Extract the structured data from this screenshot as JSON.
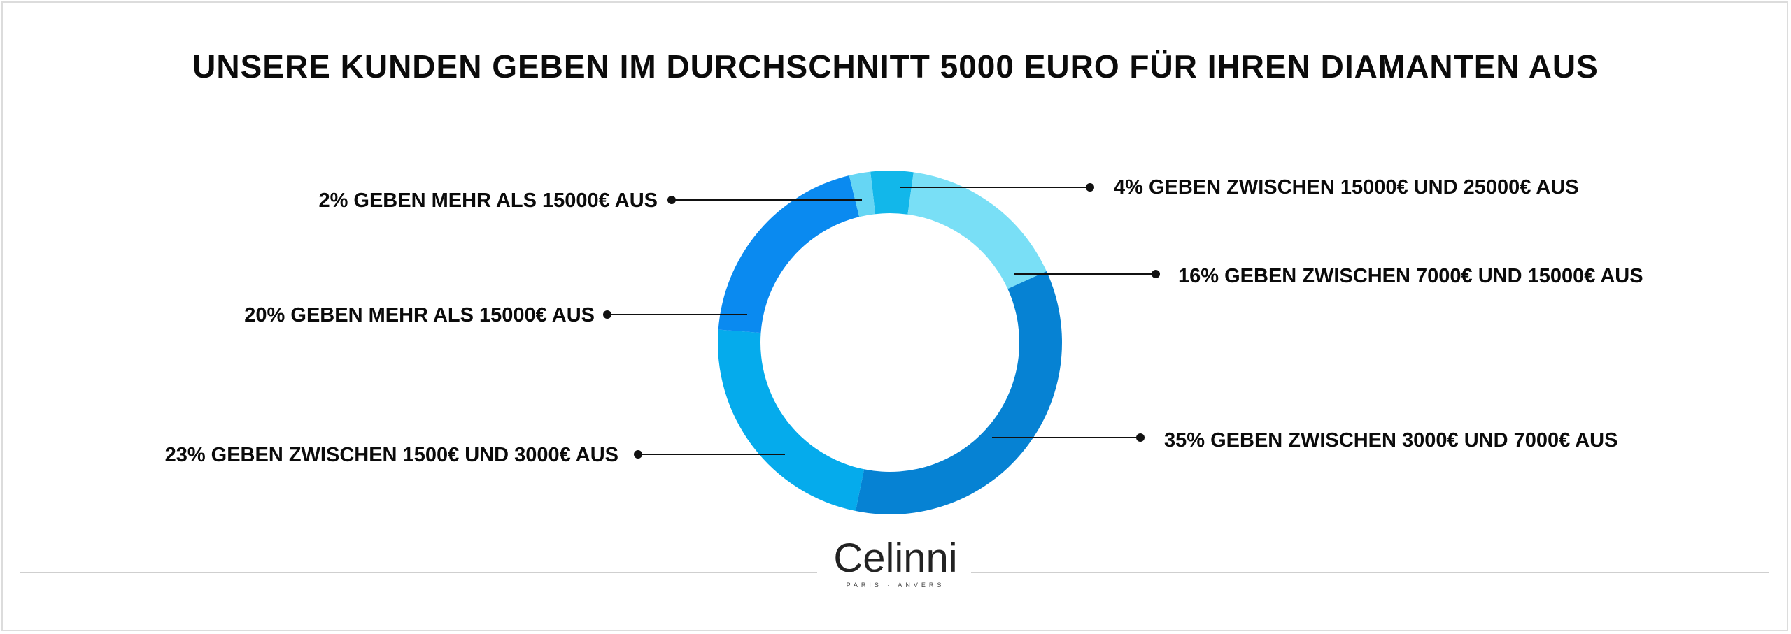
{
  "title": "UNSERE KUNDEN GEBEN IM DURCHSCHNITT 5000 EURO FÜR IHREN DIAMANTEN AUS",
  "chart_data": {
    "type": "pie",
    "donut": true,
    "title": "UNSERE KUNDEN GEBEN IM DURCHSCHNITT 5000 EURO FÜR IHREN DIAMANTEN AUS",
    "slices": [
      {
        "label": "4% GEBEN ZWISCHEN 15000€ UND 25000€ AUS",
        "value": 4,
        "color": "#12b7ea"
      },
      {
        "label": "16% GEBEN ZWISCHEN 7000€ UND 15000€ AUS",
        "value": 16,
        "color": "#79dff6"
      },
      {
        "label": "35% GEBEN ZWISCHEN 3000€ UND 7000€ AUS",
        "value": 35,
        "color": "#0682d3"
      },
      {
        "label": "23% GEBEN ZWISCHEN 1500€ UND 3000€ AUS",
        "value": 23,
        "color": "#05abec"
      },
      {
        "label": "20% GEBEN MEHR ALS 15000€ AUS",
        "value": 20,
        "color": "#0a8af0"
      },
      {
        "label": "2% GEBEN MEHR ALS 15000€ AUS",
        "value": 2,
        "color": "#66d6f4"
      }
    ]
  },
  "logo": {
    "name": "Celinni",
    "subtitle": "PARIS · ANVERS"
  }
}
